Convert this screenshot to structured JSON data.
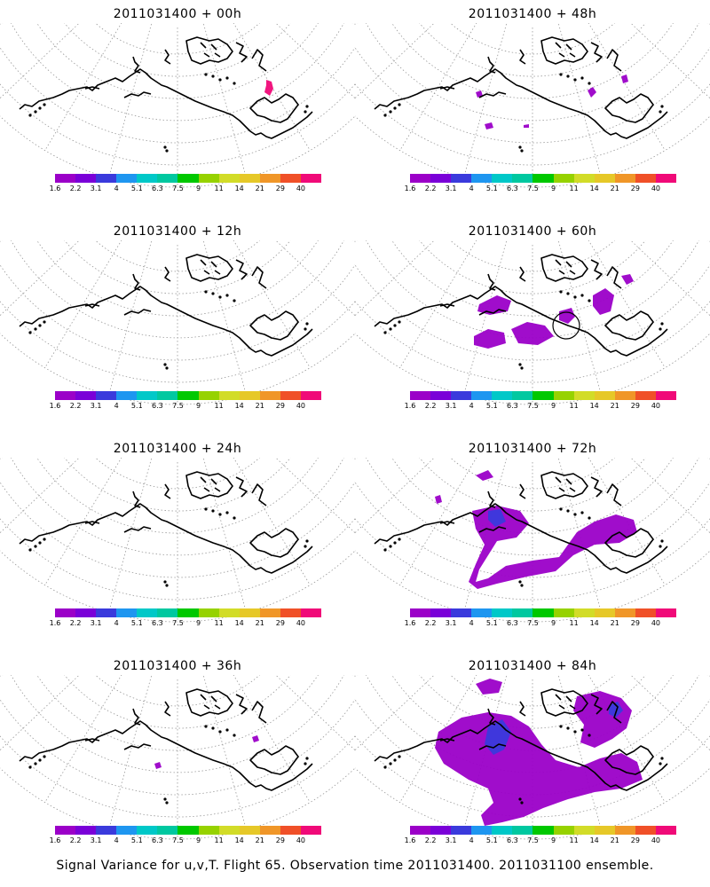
{
  "panels": [
    {
      "title": "2011031400 + 00h",
      "lead": "00h"
    },
    {
      "title": "2011031400 + 48h",
      "lead": "48h"
    },
    {
      "title": "2011031400 + 12h",
      "lead": "12h"
    },
    {
      "title": "2011031400 + 60h",
      "lead": "60h"
    },
    {
      "title": "2011031400 + 24h",
      "lead": "24h"
    },
    {
      "title": "2011031400 + 72h",
      "lead": "72h"
    },
    {
      "title": "2011031400 + 36h",
      "lead": "36h"
    },
    {
      "title": "2011031400 + 84h",
      "lead": "84h"
    }
  ],
  "colorbar": {
    "labels": [
      "1.6",
      "2.2",
      "3.1",
      "4",
      "5.1",
      "6.3",
      "7.5",
      "9",
      "11",
      "14",
      "21",
      "29",
      "40"
    ],
    "colors": [
      "#9b00c8",
      "#7a00d8",
      "#3a3adc",
      "#1e96f0",
      "#00c8c8",
      "#00c8a0",
      "#00c800",
      "#96d200",
      "#d2dc28",
      "#e6c828",
      "#f09628",
      "#f05028",
      "#f00a78"
    ]
  },
  "footer": "Signal Variance for u,v,T. Flight 65. Observation time 2011031400. 2011031100 ensemble.",
  "colors": {
    "coast": "#000000",
    "grid": "#999999",
    "signal": "#9b00c8",
    "signal_high": "#3a3adc"
  }
}
